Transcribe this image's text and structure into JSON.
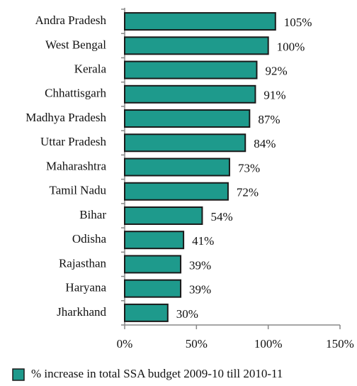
{
  "chart_data": {
    "type": "bar",
    "orientation": "horizontal",
    "categories": [
      "Andra Pradesh",
      "West Bengal",
      "Kerala",
      "Chhattisgarh",
      "Madhya Pradesh",
      "Uttar Pradesh",
      "Maharashtra",
      "Tamil Nadu",
      "Bihar",
      "Odisha",
      "Rajasthan",
      "Haryana",
      "Jharkhand"
    ],
    "series": [
      {
        "name": "% increase in total SSA budget 2009-10 till 2010-11",
        "color": "#1e9a8c",
        "values": [
          105,
          100,
          92,
          91,
          87,
          84,
          73,
          72,
          54,
          41,
          39,
          39,
          30
        ],
        "value_labels": [
          "105%",
          "100%",
          "92%",
          "91%",
          "87%",
          "84%",
          "73%",
          "72%",
          "54%",
          "41%",
          "39%",
          "39%",
          "30%"
        ]
      }
    ],
    "xlim": [
      0,
      150
    ],
    "xticks": [
      {
        "value": 0,
        "label": "0%"
      },
      {
        "value": 50,
        "label": "50%"
      },
      {
        "value": 100,
        "label": "100%"
      },
      {
        "value": 150,
        "label": "150%"
      }
    ],
    "legend": "bottom-left"
  }
}
